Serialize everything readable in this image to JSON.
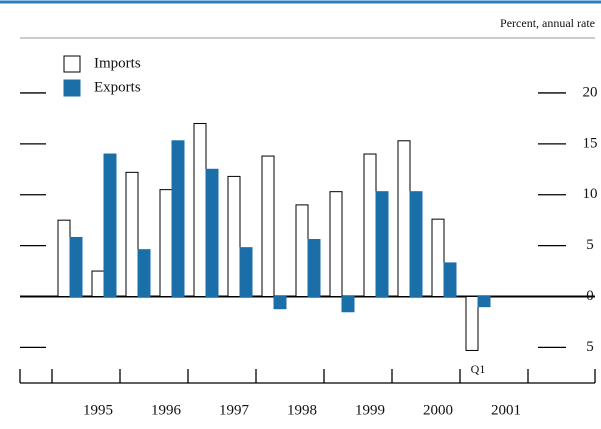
{
  "chart_data": {
    "type": "bar",
    "axis_label": "Percent, annual rate",
    "categories": [
      null,
      null,
      null,
      null,
      null,
      null,
      null,
      null,
      null,
      null,
      null,
      null,
      null
    ],
    "year_labels": [
      "1995",
      "1996",
      "1997",
      "1998",
      "1999",
      "2000",
      "2001"
    ],
    "series": [
      {
        "name": "Imports",
        "color": "#ffffff",
        "values": [
          7.5,
          2.5,
          12.2,
          10.5,
          17,
          11.8,
          13.8,
          9,
          10.3,
          14,
          15.3,
          7.6,
          -5.3
        ]
      },
      {
        "name": "Exports",
        "color": "#1b6fa8",
        "values": [
          5.8,
          14,
          4.6,
          15.3,
          12.5,
          4.8,
          -1.2,
          5.6,
          -1.5,
          10.3,
          10.3,
          3.3,
          -1.0
        ]
      }
    ],
    "annotation": "Q1",
    "ylim": [
      -8.5,
      25.4
    ],
    "yticks": [
      {
        "value": -5,
        "label": "5"
      },
      0,
      5,
      10,
      15,
      20
    ],
    "legend": "upper left"
  }
}
